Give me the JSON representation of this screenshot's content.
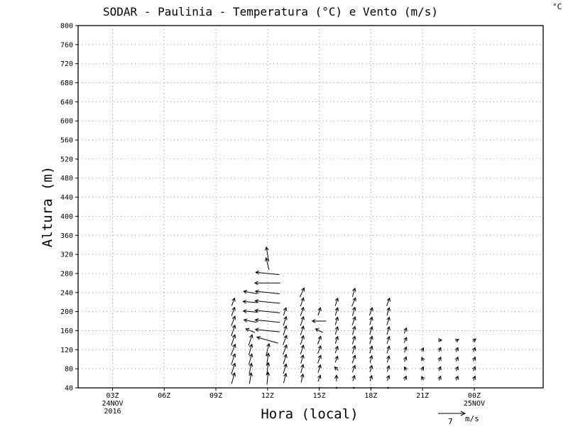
{
  "chart_data": {
    "type": "vector",
    "title": "SODAR  -  Paulinia  -  Temperatura (°C) e Vento (m/s)",
    "unit_corner": "°C",
    "xlabel": "Hora (local)",
    "ylabel": "Altura (m)",
    "xlim": [
      0,
      27
    ],
    "ylim": [
      40,
      800
    ],
    "xticks": [
      {
        "x": 2,
        "label": "03Z",
        "sub": [
          "24NOV",
          "2016"
        ]
      },
      {
        "x": 5,
        "label": "06Z",
        "sub": []
      },
      {
        "x": 8,
        "label": "09Z",
        "sub": []
      },
      {
        "x": 11,
        "label": "12Z",
        "sub": []
      },
      {
        "x": 14,
        "label": "15Z",
        "sub": []
      },
      {
        "x": 17,
        "label": "18Z",
        "sub": []
      },
      {
        "x": 20,
        "label": "21Z",
        "sub": []
      },
      {
        "x": 23,
        "label": "00Z",
        "sub": [
          "25NOV"
        ]
      }
    ],
    "yticks": [
      40,
      80,
      120,
      160,
      200,
      240,
      280,
      320,
      360,
      400,
      440,
      480,
      520,
      560,
      600,
      640,
      680,
      720,
      760,
      800
    ],
    "reference_vector": {
      "value": "7",
      "unit": "m/s"
    },
    "vectors": [
      {
        "x": 9,
        "heights": [
          60,
          80,
          100,
          120,
          140,
          160,
          180,
          200,
          220
        ],
        "u": [
          0.5,
          0.6,
          0.6,
          0.7,
          0.6,
          0.6,
          0.6,
          0.5,
          0.5
        ],
        "v": [
          1.8,
          1.8,
          1.8,
          1.8,
          1.8,
          1.8,
          1.6,
          1.4,
          1.3
        ]
      },
      {
        "x": 10,
        "heights": [
          60,
          80,
          100,
          120,
          140,
          160,
          180,
          200,
          220,
          240
        ],
        "u": [
          0.3,
          0.4,
          0.5,
          0.5,
          0.6,
          -1.5,
          -2.1,
          -2.3,
          -2.4,
          -2.2
        ],
        "v": [
          1.8,
          1.8,
          1.8,
          1.8,
          1.8,
          0.6,
          0.4,
          0.2,
          0.2,
          0.4
        ]
      },
      {
        "x": 11,
        "heights": [
          60,
          80,
          100,
          120,
          140,
          160,
          180,
          200,
          220,
          240,
          260,
          280,
          300,
          320
        ],
        "u": [
          0.2,
          0.3,
          0.3,
          0.5,
          -3.5,
          -4.0,
          -4.1,
          -4.1,
          -4.1,
          -4.0,
          -4.2,
          -3.9,
          -0.5,
          -0.4
        ],
        "v": [
          2.0,
          2.0,
          2.0,
          2.0,
          1.0,
          0.4,
          0.4,
          0.4,
          0.4,
          0.4,
          0.0,
          0.4,
          2.0,
          2.4
        ]
      },
      {
        "x": 12,
        "heights": [
          60,
          80,
          100,
          120,
          140,
          160,
          180,
          200
        ],
        "u": [
          0.4,
          0.5,
          0.5,
          0.6,
          0.6,
          0.5,
          0.5,
          0.4
        ],
        "v": [
          1.6,
          1.6,
          1.6,
          1.6,
          1.6,
          1.6,
          1.5,
          1.3
        ]
      },
      {
        "x": 13,
        "heights": [
          60,
          80,
          100,
          120,
          140,
          160,
          180,
          200,
          220,
          240
        ],
        "u": [
          0.3,
          0.4,
          0.4,
          0.5,
          0.5,
          0.5,
          0.5,
          0.5,
          0.5,
          0.7
        ],
        "v": [
          1.4,
          1.4,
          1.4,
          1.5,
          1.5,
          1.5,
          1.5,
          1.4,
          1.4,
          1.5
        ]
      },
      {
        "x": 14,
        "heights": [
          40,
          60,
          80,
          100,
          120,
          140,
          160,
          180,
          200
        ],
        "u": [
          0.0,
          0.4,
          0.4,
          0.5,
          0.5,
          0.5,
          -1.2,
          -2.3,
          0.4
        ],
        "v": [
          0.0,
          1.0,
          1.3,
          1.3,
          1.3,
          1.3,
          0.6,
          0.0,
          1.3
        ]
      },
      {
        "x": 15,
        "heights": [
          40,
          60,
          80,
          100,
          120,
          140,
          160,
          180,
          200,
          220
        ],
        "u": [
          0.0,
          0.0,
          -0.6,
          0.4,
          0.4,
          0.4,
          0.4,
          0.4,
          0.4,
          0.4
        ],
        "v": [
          0.0,
          1.0,
          0.6,
          1.0,
          1.1,
          1.2,
          1.3,
          1.3,
          1.3,
          1.3
        ]
      },
      {
        "x": 16,
        "heights": [
          40,
          60,
          80,
          100,
          120,
          140,
          160,
          180,
          200,
          220,
          240
        ],
        "u": [
          0.0,
          0.3,
          0.4,
          0.5,
          0.4,
          0.4,
          0.4,
          0.5,
          0.4,
          0.6,
          0.4
        ],
        "v": [
          0.0,
          0.9,
          1.1,
          1.3,
          1.3,
          1.3,
          1.4,
          1.4,
          1.4,
          1.4,
          1.4
        ]
      },
      {
        "x": 17,
        "heights": [
          40,
          60,
          80,
          100,
          120,
          140,
          160,
          180,
          200
        ],
        "u": [
          0.0,
          0.3,
          0.3,
          0.3,
          0.4,
          0.4,
          0.4,
          0.4,
          0.5
        ],
        "v": [
          0.0,
          0.9,
          1.1,
          1.2,
          1.2,
          1.3,
          1.3,
          1.3,
          1.3
        ]
      },
      {
        "x": 18,
        "heights": [
          40,
          60,
          80,
          100,
          120,
          140,
          160,
          180,
          200,
          220
        ],
        "u": [
          0.0,
          0.3,
          0.3,
          0.3,
          0.4,
          0.4,
          0.4,
          0.4,
          0.4,
          0.5
        ],
        "v": [
          0.0,
          0.9,
          1.0,
          1.1,
          1.2,
          1.2,
          1.3,
          1.3,
          1.3,
          1.3
        ]
      },
      {
        "x": 19,
        "heights": [
          60,
          80,
          100,
          120,
          140,
          160
        ],
        "u": [
          0.3,
          -0.3,
          0.3,
          0.3,
          0.4,
          0.4
        ],
        "v": [
          0.7,
          0.6,
          0.8,
          0.9,
          0.9,
          0.9
        ]
      },
      {
        "x": 20,
        "heights": [
          60,
          80,
          100,
          120
        ],
        "u": [
          -0.3,
          0.3,
          -0.3,
          0.3
        ],
        "v": [
          0.6,
          0.6,
          0.6,
          0.6
        ]
      },
      {
        "x": 21,
        "heights": [
          60,
          80,
          100,
          120,
          140
        ],
        "u": [
          0.3,
          0.3,
          0.3,
          0.3,
          0.6
        ],
        "v": [
          0.7,
          0.7,
          0.7,
          0.7,
          0.0
        ]
      },
      {
        "x": 22,
        "heights": [
          60,
          80,
          100,
          120,
          140
        ],
        "u": [
          0.3,
          0.3,
          0.3,
          0.3,
          0.5
        ],
        "v": [
          0.7,
          0.7,
          0.7,
          0.7,
          0.3
        ]
      },
      {
        "x": 23,
        "heights": [
          60,
          80,
          100,
          120,
          140
        ],
        "u": [
          0.3,
          0.3,
          0.3,
          0.3,
          0.5
        ],
        "v": [
          0.7,
          0.7,
          0.7,
          0.7,
          0.4
        ]
      }
    ]
  }
}
